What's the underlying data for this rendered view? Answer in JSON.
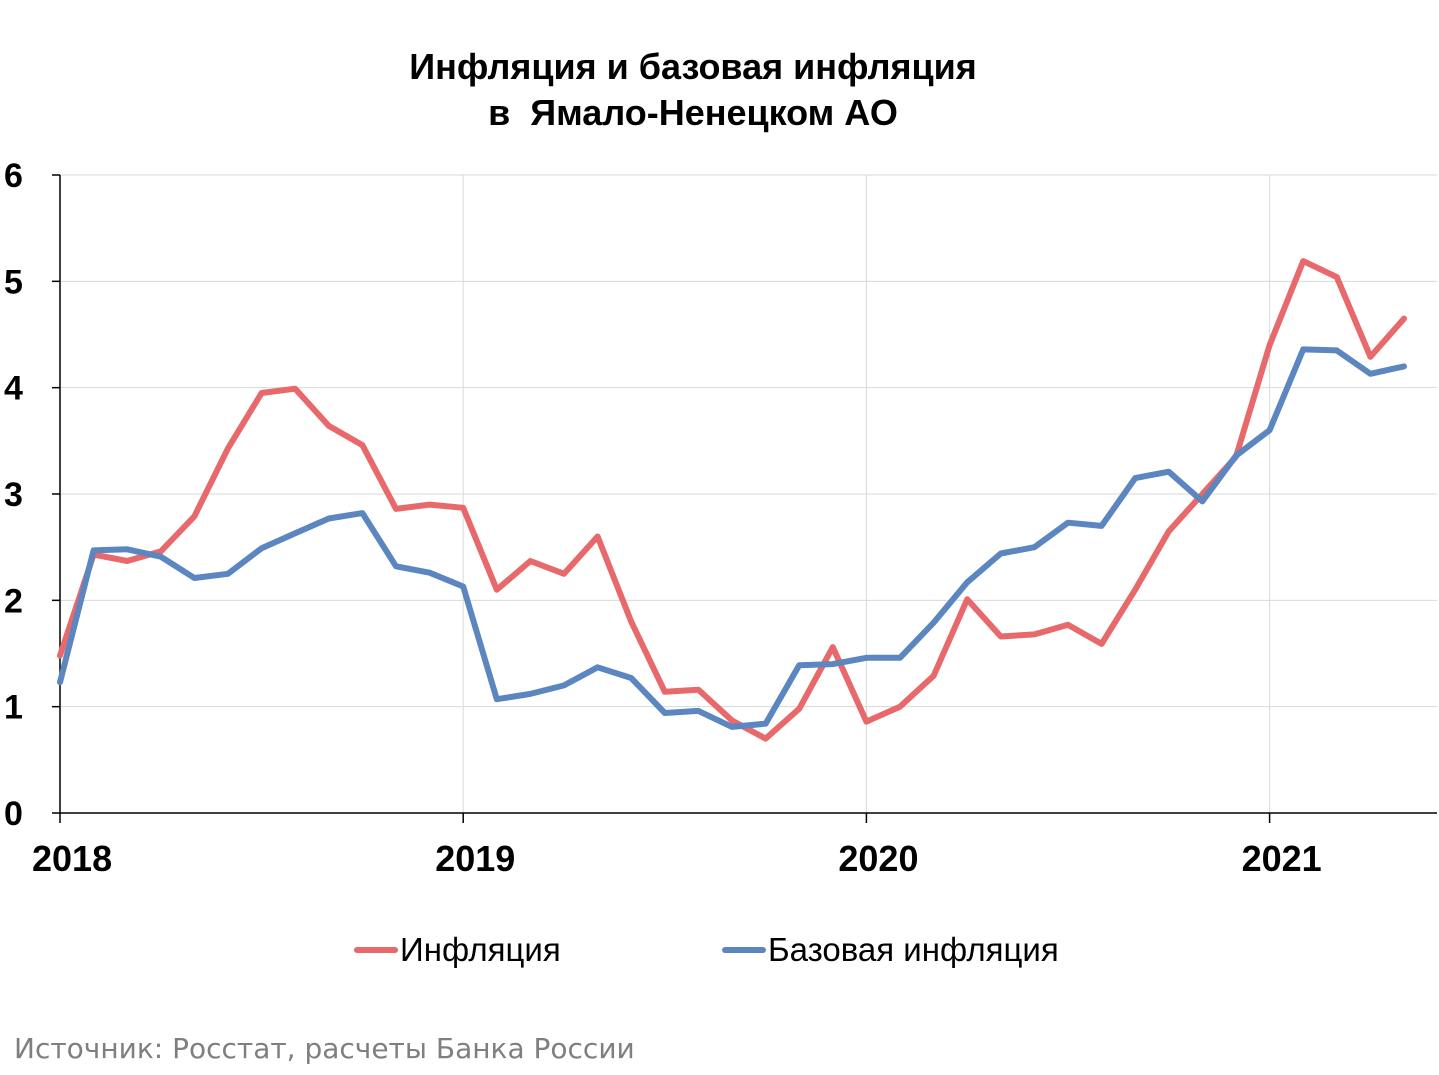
{
  "chart_data": {
    "type": "line",
    "title": [
      "Инфляция и базовая инфляция",
      "в  Ямало-Ненецком АО"
    ],
    "xlabel": "",
    "ylabel": "",
    "ylim": [
      0,
      6
    ],
    "yticks": [
      0,
      1,
      2,
      3,
      4,
      5,
      6
    ],
    "year_labels": [
      "2018",
      "2019",
      "2020",
      "2021"
    ],
    "x": [
      "2018-01",
      "2018-02",
      "2018-03",
      "2018-04",
      "2018-05",
      "2018-06",
      "2018-07",
      "2018-08",
      "2018-09",
      "2018-10",
      "2018-11",
      "2018-12",
      "2019-01",
      "2019-02",
      "2019-03",
      "2019-04",
      "2019-05",
      "2019-06",
      "2019-07",
      "2019-08",
      "2019-09",
      "2019-10",
      "2019-11",
      "2019-12",
      "2020-01",
      "2020-02",
      "2020-03",
      "2020-04",
      "2020-05",
      "2020-06",
      "2020-07",
      "2020-08",
      "2020-09",
      "2020-10",
      "2020-11",
      "2020-12",
      "2021-01",
      "2021-02",
      "2021-03",
      "2021-04",
      "2021-05"
    ],
    "grid": true,
    "legend_position": "bottom",
    "series": [
      {
        "name": "Инфляция",
        "color": "#e8696b",
        "values": [
          1.48,
          2.43,
          2.37,
          2.46,
          2.79,
          3.43,
          3.95,
          3.99,
          3.64,
          3.46,
          2.86,
          2.9,
          2.87,
          2.1,
          2.37,
          2.25,
          2.6,
          1.8,
          1.14,
          1.16,
          0.87,
          0.7,
          0.98,
          1.56,
          0.86,
          1.0,
          1.29,
          2.01,
          1.66,
          1.68,
          1.77,
          1.59,
          2.1,
          2.65,
          3.0,
          3.35,
          4.4,
          5.19,
          5.04,
          4.29,
          4.65
        ]
      },
      {
        "name": "Базовая инфляция",
        "color": "#5b86bf",
        "values": [
          1.23,
          2.47,
          2.48,
          2.41,
          2.21,
          2.25,
          2.49,
          2.63,
          2.77,
          2.82,
          2.32,
          2.26,
          2.13,
          1.07,
          1.12,
          1.2,
          1.37,
          1.27,
          0.94,
          0.96,
          0.81,
          0.84,
          1.39,
          1.4,
          1.46,
          1.46,
          1.79,
          2.17,
          2.44,
          2.5,
          2.73,
          2.7,
          3.15,
          3.21,
          2.93,
          3.36,
          3.6,
          4.36,
          4.35,
          4.13,
          4.2
        ]
      }
    ]
  },
  "source_note": "Источник: Росстат, расчеты Банка России"
}
